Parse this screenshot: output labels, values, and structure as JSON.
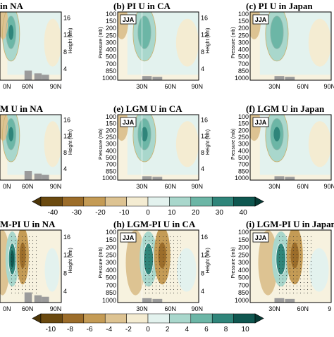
{
  "chart_data": {
    "type": "heatmap",
    "figure_kind": "zonal-mean zonal wind cross-sections (pressure vs latitude), 3x3 panels",
    "season": "JJA",
    "y_left": {
      "label": "Pressure (mb)",
      "ticks": [
        "100",
        "150",
        "200",
        "250",
        "300",
        "400",
        "500",
        "700",
        "850",
        "1000"
      ],
      "range": [
        1000,
        100
      ]
    },
    "y_right": {
      "label": "Height (km)",
      "ticks": [
        "4",
        "8",
        "12",
        "16"
      ]
    },
    "panels": [
      {
        "id": "a",
        "title": "in NA",
        "row": 1,
        "col": 1,
        "season": "",
        "x_ticks": [
          "60N",
          "90N"
        ],
        "x_ticks_left": [
          "0N"
        ]
      },
      {
        "id": "b",
        "title": "(b) PI U in CA",
        "row": 1,
        "col": 2,
        "season": "JJA",
        "x_ticks": [
          "30N",
          "60N",
          "90N"
        ]
      },
      {
        "id": "c",
        "title": "(c) PI U in Japan",
        "row": 1,
        "col": 3,
        "season": "JJA",
        "x_ticks": [
          "30N",
          "60N",
          "90N"
        ]
      },
      {
        "id": "d",
        "title": "M U in NA",
        "row": 2,
        "col": 1,
        "season": "",
        "x_ticks": [
          "60N",
          "90N"
        ],
        "x_ticks_left": [
          "0N"
        ]
      },
      {
        "id": "e",
        "title": "(e) LGM U in CA",
        "row": 2,
        "col": 2,
        "season": "JJA",
        "x_ticks": [
          "30N",
          "60N",
          "90N"
        ]
      },
      {
        "id": "f",
        "title": "(f) LGM U in Japan",
        "row": 2,
        "col": 3,
        "season": "JJA",
        "x_ticks": [
          "30N",
          "60N",
          "90N"
        ]
      },
      {
        "id": "g",
        "title": "M-PI U in NA",
        "row": 3,
        "col": 1,
        "season": "",
        "x_ticks": [
          "60N",
          "90N"
        ],
        "x_ticks_left": [
          "0N"
        ]
      },
      {
        "id": "h",
        "title": "(h) LGM-PI U in CA",
        "row": 3,
        "col": 2,
        "season": "JJA",
        "x_ticks": [
          "30N",
          "60N",
          "90N"
        ]
      },
      {
        "id": "i",
        "title": "(i) LGM-PI U in Japan",
        "row": 3,
        "col": 3,
        "season": "JJA",
        "x_ticks": [
          "30N",
          "60N",
          "9"
        ]
      }
    ],
    "colorbar_top": {
      "ticks": [
        "-40",
        "-30",
        "-20",
        "-10",
        "0",
        "10",
        "20",
        "30",
        "40"
      ],
      "applies_to": [
        "a",
        "b",
        "c",
        "d",
        "e",
        "f"
      ]
    },
    "colorbar_bottom": {
      "ticks": [
        "-10",
        "-8",
        "-6",
        "-4",
        "-2",
        "0",
        "2",
        "4",
        "6",
        "8",
        "10"
      ],
      "applies_to": [
        "g",
        "h",
        "i"
      ]
    },
    "colors": {
      "brown_dark": "#6b4a10",
      "brown": "#9c6d2a",
      "brown_mid": "#c49b55",
      "tan": "#ddc392",
      "cream": "#f4ecd2",
      "aqua_pale": "#e3f2ee",
      "aqua": "#a9d7cc",
      "teal": "#6cb6a6",
      "teal_dark": "#2f857a",
      "teal_deep": "#0f5750",
      "terrain": "#9b9b9b"
    }
  }
}
